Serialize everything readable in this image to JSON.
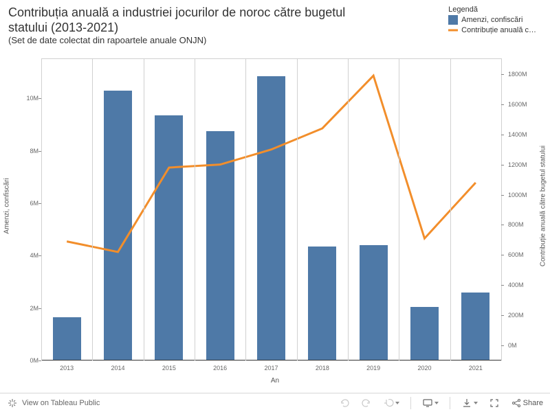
{
  "header": {
    "title": "Contribuția anuală a industriei jocurilor de noroc către bugetul statului (2013-2021)",
    "subtitle": "(Set de date colectat din rapoartele anuale ONJN)"
  },
  "legend": {
    "title": "Legendă",
    "items": [
      {
        "label": "Amenzi, confiscări",
        "kind": "bar",
        "color": "#4e79a7"
      },
      {
        "label": "Contribuție anuală c…",
        "kind": "line",
        "color": "#f28e2b"
      }
    ]
  },
  "chart": {
    "type": "bar+line",
    "categories": [
      "2013",
      "2014",
      "2015",
      "2016",
      "2017",
      "2018",
      "2019",
      "2020",
      "2021"
    ],
    "x_axis_title": "An",
    "left_axis": {
      "title": "Amenzi, confiscări",
      "min": 0,
      "max": 11500000,
      "ticks": [
        0,
        2000000,
        4000000,
        6000000,
        8000000,
        10000000
      ],
      "tick_labels": [
        "0M",
        "2M",
        "4M",
        "6M",
        "8M",
        "10M"
      ],
      "fontsize": 9
    },
    "right_axis": {
      "title": "Contribuție anuală către bugetul statului",
      "min": -100000000,
      "max": 1900000000,
      "ticks": [
        0,
        200000000,
        400000000,
        600000000,
        800000000,
        1000000000,
        1200000000,
        1400000000,
        1600000000,
        1800000000
      ],
      "tick_labels": [
        "0M",
        "200M",
        "400M",
        "600M",
        "800M",
        "1000M",
        "1200M",
        "1400M",
        "1600M",
        "1800M"
      ],
      "fontsize": 9
    },
    "bars": {
      "values": [
        1650000,
        10300000,
        9350000,
        8750000,
        10850000,
        4350000,
        4400000,
        2050000,
        2600000
      ],
      "color": "#4e79a7",
      "width_ratio": 0.55
    },
    "line": {
      "values": [
        690000000,
        620000000,
        1180000000,
        1200000000,
        1300000000,
        1440000000,
        1790000000,
        710000000,
        1080000000
      ],
      "color": "#f28e2b",
      "width": 3
    },
    "background_color": "#ffffff",
    "border_color": "#d0d0d0"
  },
  "toolbar": {
    "view_label": "View on Tableau Public",
    "share_label": "Share"
  }
}
